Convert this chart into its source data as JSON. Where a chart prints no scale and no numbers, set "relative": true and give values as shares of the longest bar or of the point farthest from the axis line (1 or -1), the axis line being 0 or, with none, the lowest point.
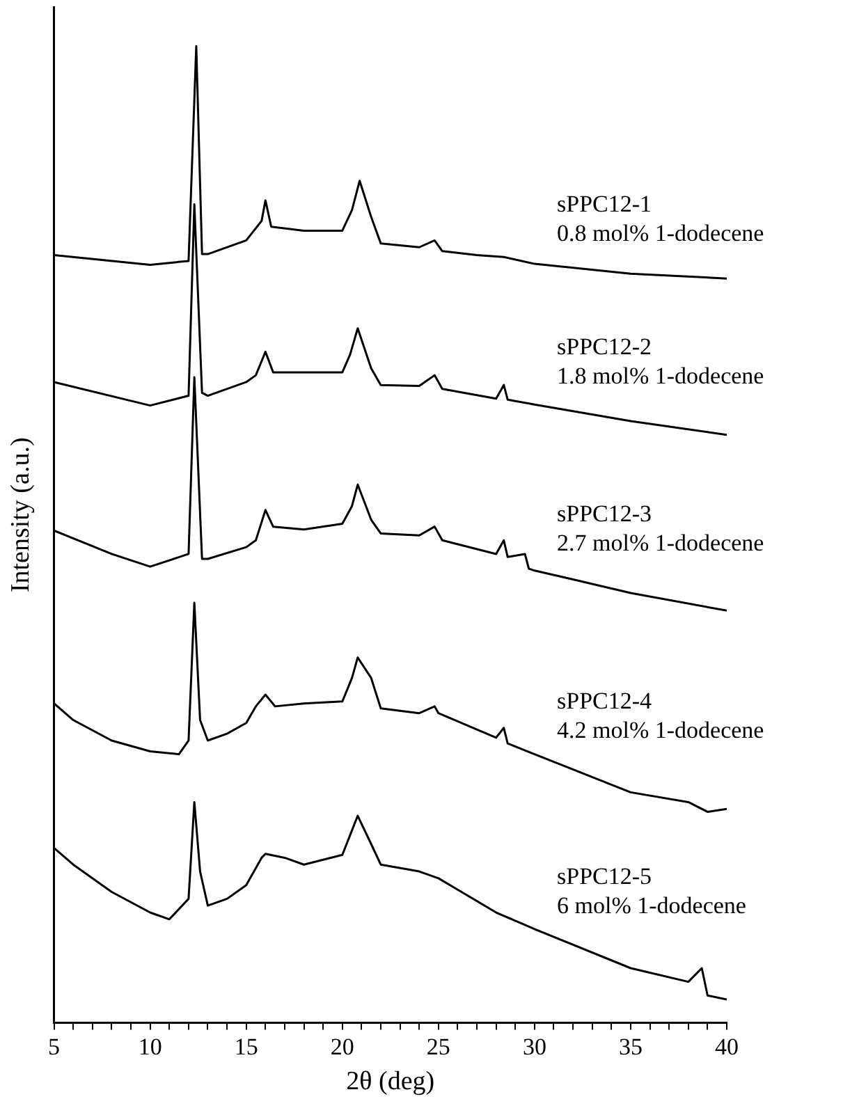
{
  "chart_data": {
    "type": "line",
    "xlabel": "2θ (deg)",
    "ylabel": "Intensity (a.u.)",
    "relative": true,
    "xlim": [
      5,
      40
    ],
    "xticks": [
      5,
      {
        "value": 6,
        "label": null
      },
      {
        "value": 7,
        "label": null
      },
      {
        "value": 8,
        "label": null
      },
      {
        "value": 9,
        "label": null
      },
      10,
      {
        "value": 11,
        "label": null
      },
      {
        "value": 12,
        "label": null
      },
      {
        "value": 13,
        "label": null
      },
      {
        "value": 14,
        "label": null
      },
      15,
      {
        "value": 16,
        "label": null
      },
      {
        "value": 17,
        "label": null
      },
      {
        "value": 18,
        "label": null
      },
      {
        "value": 19,
        "label": null
      },
      20,
      {
        "value": 21,
        "label": null
      },
      {
        "value": 22,
        "label": null
      },
      {
        "value": 23,
        "label": null
      },
      {
        "value": 24,
        "label": null
      },
      25,
      {
        "value": 26,
        "label": null
      },
      {
        "value": 27,
        "label": null
      },
      {
        "value": 28,
        "label": null
      },
      {
        "value": 29,
        "label": null
      },
      30,
      {
        "value": 31,
        "label": null
      },
      {
        "value": 32,
        "label": null
      },
      {
        "value": 33,
        "label": null
      },
      {
        "value": 34,
        "label": null
      },
      35,
      {
        "value": 36,
        "label": null
      },
      {
        "value": 37,
        "label": null
      },
      {
        "value": 38,
        "label": null
      },
      {
        "value": 39,
        "label": null
      },
      40
    ],
    "grid": false,
    "legend": false,
    "marker": "none",
    "line_style": "solid",
    "series": [
      {
        "name": "sPPC12-1\n0.8 mol% 1-dodecene",
        "color": "#000000",
        "x": [
          5,
          10,
          12,
          12.4,
          12.7,
          13,
          15,
          15.8,
          16,
          16.3,
          18,
          20,
          20.5,
          20.9,
          21.5,
          22,
          24,
          24.8,
          25.2,
          27,
          28.4,
          30,
          35,
          40
        ],
        "values": [
          0.786,
          0.776,
          0.78,
          1.0,
          0.787,
          0.787,
          0.801,
          0.821,
          0.842,
          0.815,
          0.811,
          0.811,
          0.832,
          0.862,
          0.825,
          0.798,
          0.794,
          0.801,
          0.79,
          0.786,
          0.784,
          0.777,
          0.767,
          0.762
        ]
      },
      {
        "name": "sPPC12-2\n1.8 mol% 1-dodecene",
        "color": "#000000",
        "x": [
          5,
          10,
          12,
          12.3,
          12.7,
          13,
          15,
          15.5,
          16,
          16.4,
          18,
          20,
          20.4,
          20.8,
          21.5,
          22,
          24,
          24.8,
          25.2,
          28,
          28.4,
          28.6,
          30,
          35,
          40
        ],
        "values": [
          0.656,
          0.632,
          0.642,
          0.838,
          0.645,
          0.642,
          0.656,
          0.663,
          0.687,
          0.666,
          0.666,
          0.666,
          0.684,
          0.711,
          0.67,
          0.653,
          0.652,
          0.663,
          0.649,
          0.639,
          0.653,
          0.638,
          0.633,
          0.616,
          0.602
        ]
      },
      {
        "name": "sPPC12-3\n2.7 mol% 1-dodecene",
        "color": "#000000",
        "x": [
          5,
          8,
          10,
          12,
          12.3,
          12.7,
          13,
          15,
          15.5,
          16,
          16.4,
          18,
          20,
          20.5,
          20.8,
          21.5,
          22,
          24,
          24.8,
          25.2,
          28,
          28.4,
          28.6,
          29.5,
          29.7,
          30,
          32,
          35,
          40
        ],
        "values": [
          0.504,
          0.48,
          0.467,
          0.48,
          0.661,
          0.475,
          0.475,
          0.487,
          0.494,
          0.525,
          0.508,
          0.505,
          0.511,
          0.529,
          0.551,
          0.515,
          0.501,
          0.499,
          0.508,
          0.494,
          0.48,
          0.494,
          0.477,
          0.48,
          0.465,
          0.463,
          0.454,
          0.44,
          0.422
        ]
      },
      {
        "name": "sPPC12-4\n4.2 mol% 1-dodecene",
        "color": "#000000",
        "x": [
          5,
          6,
          8,
          10,
          11.5,
          12,
          12.3,
          12.6,
          13,
          14,
          15,
          15.5,
          16,
          16.5,
          18,
          20,
          20.5,
          20.8,
          21.5,
          22,
          24,
          24.8,
          25,
          28,
          28.4,
          28.6,
          30,
          35,
          38,
          39,
          40
        ],
        "values": [
          0.327,
          0.31,
          0.289,
          0.278,
          0.275,
          0.289,
          0.43,
          0.31,
          0.289,
          0.296,
          0.307,
          0.324,
          0.336,
          0.324,
          0.327,
          0.329,
          0.353,
          0.374,
          0.353,
          0.322,
          0.317,
          0.324,
          0.317,
          0.292,
          0.302,
          0.286,
          0.275,
          0.236,
          0.226,
          0.216,
          0.219
        ]
      },
      {
        "name": "sPPC12-5\n6 mol% 1-dodecene",
        "color": "#000000",
        "x": [
          5,
          6,
          8,
          10,
          11,
          12,
          12.3,
          12.6,
          13,
          14,
          15,
          15.8,
          16,
          17,
          18,
          20,
          20.5,
          20.8,
          21.5,
          22,
          24,
          25,
          28,
          30,
          35,
          38,
          38.7,
          39,
          40
        ],
        "values": [
          0.179,
          0.162,
          0.134,
          0.113,
          0.106,
          0.127,
          0.226,
          0.155,
          0.12,
          0.127,
          0.141,
          0.169,
          0.173,
          0.169,
          0.162,
          0.172,
          0.197,
          0.212,
          0.183,
          0.162,
          0.155,
          0.148,
          0.113,
          0.096,
          0.056,
          0.042,
          0.056,
          0.028,
          0.024
        ]
      }
    ]
  }
}
